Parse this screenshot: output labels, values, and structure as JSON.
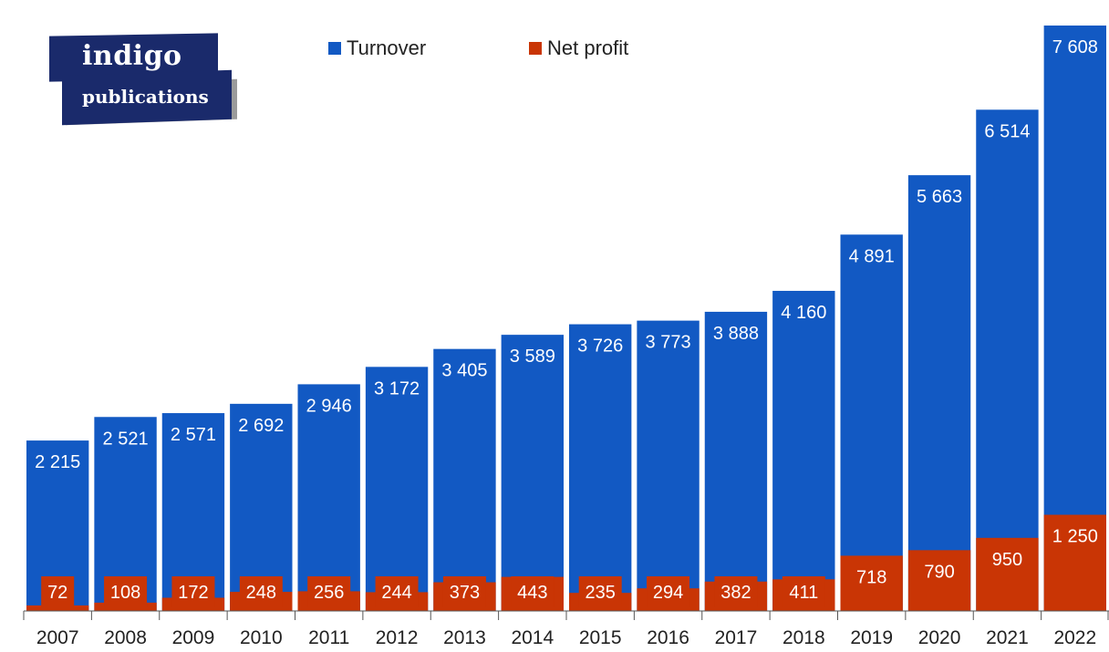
{
  "logo": {
    "line1": "indigo",
    "line2": "publications"
  },
  "colors": {
    "turnover": "#1259c3",
    "net_profit": "#c93505",
    "text_light": "#ffffff",
    "text_dark": "#222222",
    "axis": "#555555"
  },
  "chart_data": {
    "type": "bar",
    "title": "",
    "xlabel": "",
    "ylabel": "",
    "legend_position": "top",
    "grid": false,
    "categories": [
      "2007",
      "2008",
      "2009",
      "2010",
      "2011",
      "2012",
      "2013",
      "2014",
      "2015",
      "2016",
      "2017",
      "2018",
      "2019",
      "2020",
      "2021",
      "2022"
    ],
    "series": [
      {
        "name": "Turnover",
        "values": [
          2215,
          2521,
          2571,
          2692,
          2946,
          3172,
          3405,
          3589,
          3726,
          3773,
          3888,
          4160,
          4891,
          5663,
          6514,
          7608
        ],
        "labels": [
          "2 215",
          "2 521",
          "2 571",
          "2 692",
          "2 946",
          "3 172",
          "3 405",
          "3 589",
          "3 726",
          "3 773",
          "3 888",
          "4 160",
          "4 891",
          "5 663",
          "6 514",
          "7 608"
        ]
      },
      {
        "name": "Net profit",
        "values": [
          72,
          108,
          172,
          248,
          256,
          244,
          373,
          443,
          235,
          294,
          382,
          411,
          718,
          790,
          950,
          1250
        ],
        "labels": [
          "72",
          "108",
          "172",
          "248",
          "256",
          "244",
          "373",
          "443",
          "235",
          "294",
          "382",
          "411",
          "718",
          "790",
          "950",
          "1 250"
        ]
      }
    ],
    "ylim": [
      0,
      7608
    ]
  }
}
